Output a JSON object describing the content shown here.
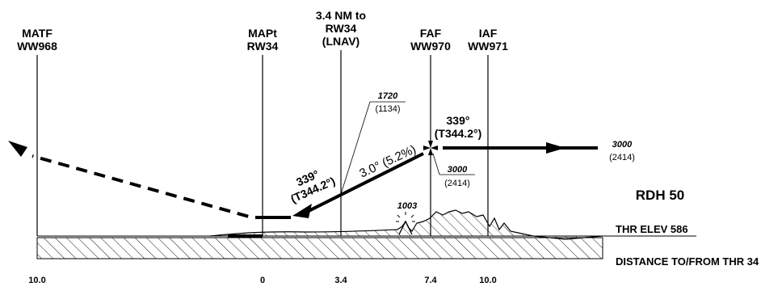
{
  "fixes": [
    {
      "id": "matf",
      "line1": "MATF",
      "line2": "WW968"
    },
    {
      "id": "mapt",
      "line1": "MAPt",
      "line2": "RW34"
    },
    {
      "id": "vdp",
      "line1": "3.4 NM to",
      "line2": "RW34",
      "line3": "(LNAV)"
    },
    {
      "id": "faf",
      "line1": "FAF",
      "line2": "WW970"
    },
    {
      "id": "iaf",
      "line1": "IAF",
      "line2": "WW971"
    }
  ],
  "altitudes": {
    "iaf_alt": "3000",
    "iaf_hat": "(2414)",
    "faf_alt": "3000",
    "faf_hat": "(2414)",
    "vdp_alt": "1720",
    "vdp_hat": "(1134)",
    "obstacle": "1003"
  },
  "courses": {
    "inbound_mag": "339°",
    "inbound_true": "(T344.2°)",
    "final_mag": "339°",
    "final_true": "(T344.2°)"
  },
  "glidepath": "3.0° (5.2%)",
  "rdh": "RDH 50",
  "thr_elev": "THR ELEV 586",
  "axis_title": "DISTANCE TO/FROM THR 34",
  "distances": [
    "10.0",
    "0",
    "3.4",
    "7.4",
    "10.0"
  ]
}
